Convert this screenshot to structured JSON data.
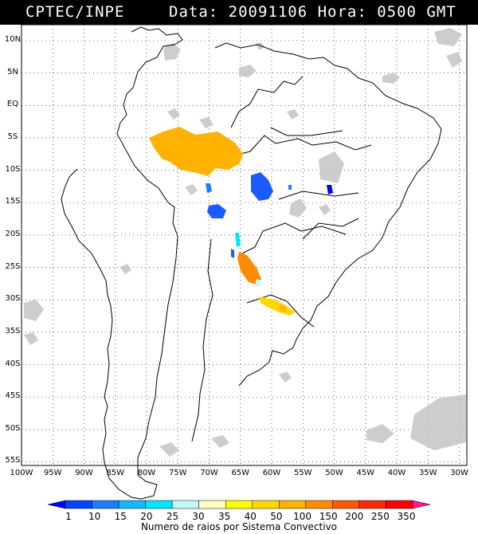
{
  "header": {
    "source": "CPTEC/INPE",
    "datetime": "Data: 20091106 Hora: 0500 GMT"
  },
  "map": {
    "lat_labels": [
      "10N",
      "5N",
      "EQ",
      "5S",
      "10S",
      "15S",
      "20S",
      "25S",
      "30S",
      "35S",
      "40S",
      "45S",
      "50S",
      "55S"
    ],
    "lon_labels": [
      "100W",
      "95W",
      "90W",
      "85W",
      "80W",
      "75W",
      "70W",
      "65W",
      "60W",
      "55W",
      "50W",
      "45W",
      "40W",
      "35W",
      "30W"
    ],
    "lon_values": [
      -100,
      -95,
      -90,
      -85,
      -80,
      -75,
      -70,
      -65,
      -60,
      -55,
      -50,
      -45,
      -40,
      -35,
      -30
    ],
    "lat_values": [
      10,
      5,
      0,
      -5,
      -10,
      -15,
      -20,
      -25,
      -30,
      -35,
      -40,
      -45,
      -50,
      -55
    ],
    "cloud_color": "#c0c0c0"
  },
  "colorbar": {
    "title": "Numero de raios por Sistema Convectivo",
    "labels": [
      "1",
      "10",
      "15",
      "20",
      "25",
      "30",
      "35",
      "40",
      "50",
      "100",
      "150",
      "200",
      "250",
      "350"
    ],
    "colors": [
      "#0000ff",
      "#0044ff",
      "#1a7fff",
      "#1ab5ff",
      "#00e6ff",
      "#c4f9ff",
      "#ffffc4",
      "#ffff00",
      "#ffd700",
      "#ffb300",
      "#ff8c00",
      "#ff5a00",
      "#ff2a00",
      "#ff0000",
      "#ff1a8c"
    ]
  }
}
